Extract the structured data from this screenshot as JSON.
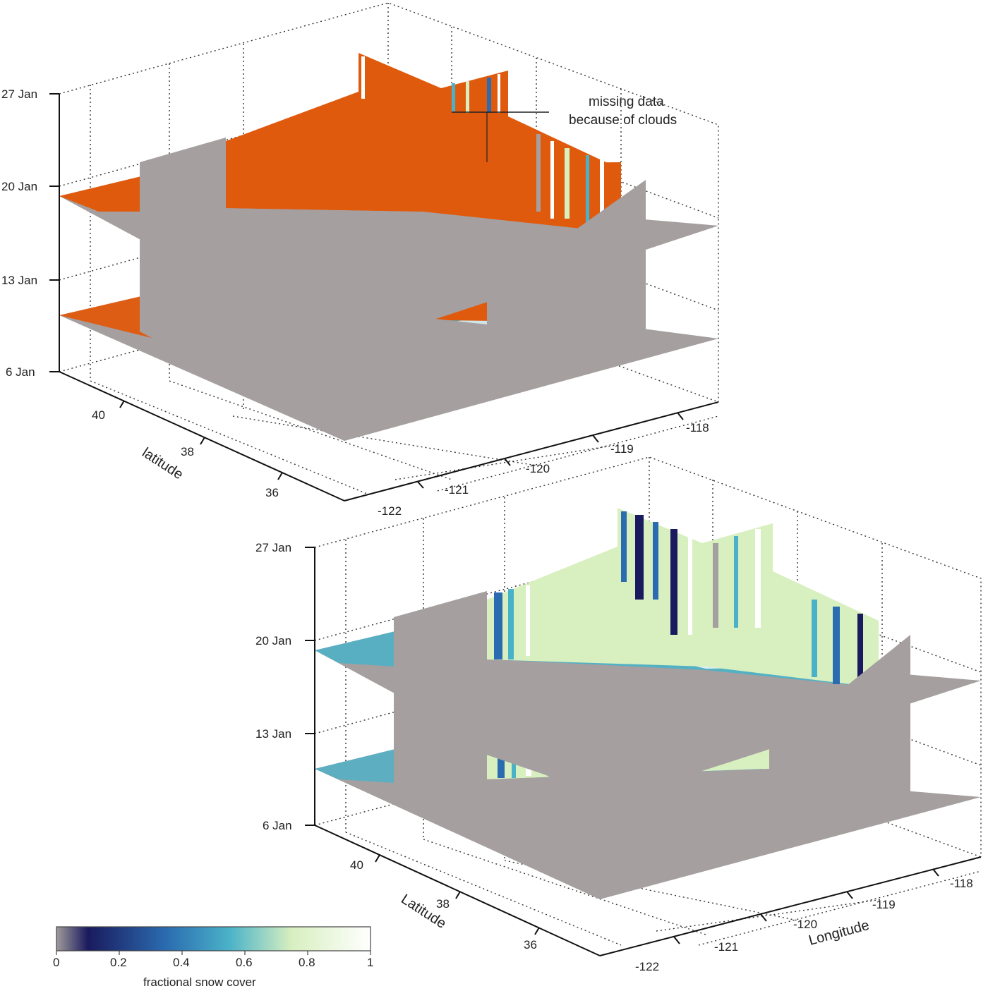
{
  "chart_data": [
    {
      "type": "3d-slice",
      "panel": "top",
      "title": "",
      "zlabel": "",
      "ylabel": "latitude",
      "xlabel": "",
      "time_ticks": [
        "6 Jan",
        "13 Jan",
        "20 Jan",
        "27 Jan"
      ],
      "lat_ticks": [
        "40",
        "38",
        "36"
      ],
      "lon_ticks": [
        "-122",
        "-121",
        "-120",
        "-119",
        "-118"
      ],
      "slices": [
        "13 Jan",
        "20 Jan"
      ],
      "annotation": [
        "missing data",
        "because of clouds"
      ],
      "missing_color": "#e05a0e",
      "grid": true
    },
    {
      "type": "3d-slice",
      "panel": "bottom",
      "title": "",
      "zlabel": "",
      "ylabel": "Latitude",
      "xlabel": "Longitude",
      "time_ticks": [
        "6 Jan",
        "13 Jan",
        "20 Jan",
        "27 Jan"
      ],
      "lat_ticks": [
        "40",
        "38",
        "36"
      ],
      "lon_ticks": [
        "-122",
        "-121",
        "-120",
        "-119",
        "-118"
      ],
      "slices": [
        "13 Jan",
        "20 Jan"
      ],
      "grid": true
    }
  ],
  "colorbar": {
    "label": "fractional snow cover",
    "ticks": [
      "0",
      "0.2",
      "0.4",
      "0.6",
      "0.8",
      "1"
    ],
    "range": [
      0,
      1
    ],
    "colors": [
      "#a09a9a",
      "#1a1a5e",
      "#2b6cb0",
      "#4ab2c8",
      "#d8efc0",
      "#ffffff"
    ]
  },
  "background_color": "#a59f9f"
}
